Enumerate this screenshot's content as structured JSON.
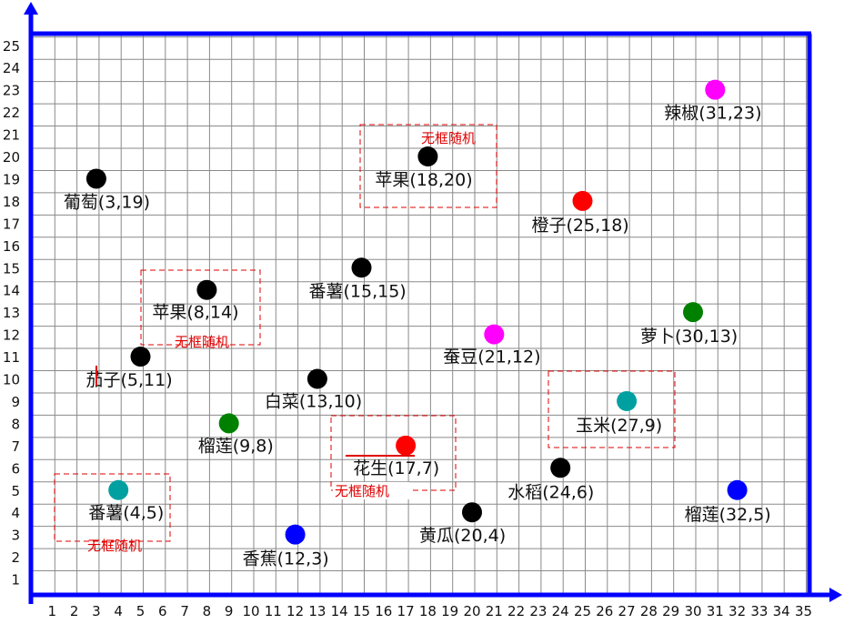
{
  "colors": {
    "axis": "#0000ff",
    "grid": "#8a8a8a",
    "annotation": "#e00000",
    "black": "#000000",
    "red": "#ff0000",
    "magenta": "#ff00ff",
    "green": "#008000",
    "teal": "#00a0a0",
    "blue": "#0000ff"
  },
  "axes": {
    "x_ticks": [
      "1",
      "2",
      "3",
      "4",
      "5",
      "6",
      "7",
      "8",
      "9",
      "10",
      "11",
      "12",
      "13",
      "14",
      "15",
      "16",
      "17",
      "18",
      "19",
      "20",
      "21",
      "22",
      "23",
      "24",
      "25",
      "26",
      "27",
      "28",
      "29",
      "30",
      "31",
      "32",
      "33",
      "34",
      "35"
    ],
    "y_ticks": [
      "1",
      "2",
      "3",
      "4",
      "5",
      "6",
      "7",
      "8",
      "9",
      "10",
      "11",
      "12",
      "13",
      "14",
      "15",
      "16",
      "17",
      "18",
      "19",
      "20",
      "21",
      "22",
      "23",
      "24",
      "25"
    ]
  },
  "points": [
    {
      "label": "葡萄(3,19)",
      "x": 3,
      "y": 19,
      "color": "black"
    },
    {
      "label": "苹果(8,14)",
      "x": 8,
      "y": 14,
      "color": "black"
    },
    {
      "label": "茄子(5,11)",
      "x": 5,
      "y": 11,
      "color": "black"
    },
    {
      "label": "榴莲(9,8)",
      "x": 9,
      "y": 8,
      "color": "green"
    },
    {
      "label": "番薯(4,5)",
      "x": 4,
      "y": 5,
      "color": "teal"
    },
    {
      "label": "香蕉(12,3)",
      "x": 12,
      "y": 3,
      "color": "blue"
    },
    {
      "label": "白菜(13,10)",
      "x": 13,
      "y": 10,
      "color": "black"
    },
    {
      "label": "番薯(15,15)",
      "x": 15,
      "y": 15,
      "color": "black"
    },
    {
      "label": "苹果(18,20)",
      "x": 18,
      "y": 20,
      "color": "black"
    },
    {
      "label": "花生(17,7)",
      "x": 17,
      "y": 7,
      "color": "red"
    },
    {
      "label": "黄瓜(20,4)",
      "x": 20,
      "y": 4,
      "color": "black"
    },
    {
      "label": "蚕豆(21,12)",
      "x": 21,
      "y": 12,
      "color": "magenta"
    },
    {
      "label": "橙子(25,18)",
      "x": 25,
      "y": 18,
      "color": "red"
    },
    {
      "label": "水稻(24,6)",
      "x": 24,
      "y": 6,
      "color": "black"
    },
    {
      "label": "玉米(27,9)",
      "x": 27,
      "y": 9,
      "color": "teal"
    },
    {
      "label": "萝卜(30,13)",
      "x": 30,
      "y": 13,
      "color": "green"
    },
    {
      "label": "辣椒(31,23)",
      "x": 31,
      "y": 23,
      "color": "magenta"
    },
    {
      "label": "榴莲(32,5)",
      "x": 32,
      "y": 5,
      "color": "blue"
    }
  ],
  "annotations": [
    {
      "text": "无框随机",
      "box_for": "苹果(18,20)"
    },
    {
      "text": "无框随机",
      "box_for": "苹果(8,14)"
    },
    {
      "text": "无框随机",
      "box_for": "花生(17,7)"
    },
    {
      "text": "无框随机",
      "box_for": "番薯(4,5)"
    },
    {
      "text": "",
      "box_for": "玉米(27,9)"
    }
  ]
}
